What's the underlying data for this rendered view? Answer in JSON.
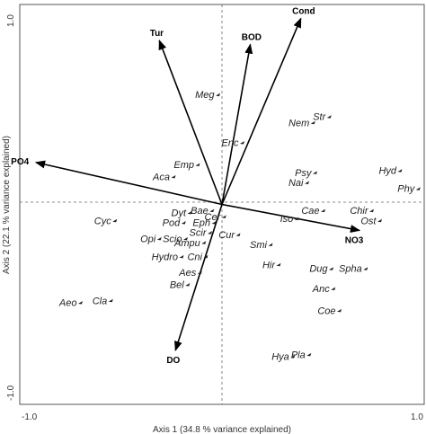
{
  "chart_data": {
    "type": "scatter",
    "subtype": "ordination-biplot",
    "xlabel": "Axis 1 (34.8 % variance explained)",
    "ylabel": "Axis 2 (22.1 % variance explained)",
    "xlim": [
      -1.0,
      1.0
    ],
    "ylim": [
      -1.0,
      1.0
    ],
    "x_tick_labels": [
      "-1.0",
      "1.0"
    ],
    "y_tick_labels": [
      "-1.0",
      "1.0"
    ],
    "reference_lines": "dashed lines at x=0 and y=0",
    "grid": false,
    "colors": {
      "arrow": "#000000",
      "species": "#222222",
      "frame": "#555555"
    },
    "env_vectors": [
      {
        "name": "Cond",
        "x": 0.39,
        "y": 0.93
      },
      {
        "name": "BOD",
        "x": 0.14,
        "y": 0.8
      },
      {
        "name": "Tur",
        "x": -0.31,
        "y": 0.82
      },
      {
        "name": "PO4",
        "x": -0.92,
        "y": 0.21
      },
      {
        "name": "NO3",
        "x": 0.68,
        "y": -0.13
      },
      {
        "name": "DO",
        "x": -0.23,
        "y": -0.73
      }
    ],
    "species": [
      {
        "name": "Meg",
        "x": -0.02,
        "y": 0.55
      },
      {
        "name": "Str",
        "x": 0.53,
        "y": 0.44
      },
      {
        "name": "Nem",
        "x": 0.45,
        "y": 0.41
      },
      {
        "name": "Enc",
        "x": 0.1,
        "y": 0.31
      },
      {
        "name": "Emp",
        "x": -0.12,
        "y": 0.2
      },
      {
        "name": "Aca",
        "x": -0.24,
        "y": 0.14
      },
      {
        "name": "Psy",
        "x": 0.46,
        "y": 0.16
      },
      {
        "name": "Nai",
        "x": 0.42,
        "y": 0.11
      },
      {
        "name": "Hyd",
        "x": 0.88,
        "y": 0.17
      },
      {
        "name": "Phy",
        "x": 0.97,
        "y": 0.08
      },
      {
        "name": "Cae",
        "x": 0.5,
        "y": -0.03
      },
      {
        "name": "Chir",
        "x": 0.74,
        "y": -0.03
      },
      {
        "name": "Ost",
        "x": 0.78,
        "y": -0.08
      },
      {
        "name": "Iso",
        "x": 0.37,
        "y": -0.07
      },
      {
        "name": "Dyt",
        "x": -0.16,
        "y": -0.04
      },
      {
        "name": "Bae",
        "x": -0.05,
        "y": -0.03
      },
      {
        "name": "Cer",
        "x": 0.01,
        "y": -0.06
      },
      {
        "name": "Pod",
        "x": -0.19,
        "y": -0.09
      },
      {
        "name": "Eph",
        "x": -0.04,
        "y": -0.09
      },
      {
        "name": "Scir",
        "x": -0.06,
        "y": -0.14
      },
      {
        "name": "Cyc",
        "x": -0.53,
        "y": -0.08
      },
      {
        "name": "Scio",
        "x": -0.18,
        "y": -0.17
      },
      {
        "name": "Ampu",
        "x": -0.09,
        "y": -0.19
      },
      {
        "name": "Opi",
        "x": -0.31,
        "y": -0.17
      },
      {
        "name": "Cur",
        "x": 0.08,
        "y": -0.15
      },
      {
        "name": "Smi",
        "x": 0.24,
        "y": -0.2
      },
      {
        "name": "Hydro",
        "x": -0.2,
        "y": -0.26
      },
      {
        "name": "Cni",
        "x": -0.08,
        "y": -0.26
      },
      {
        "name": "Aes",
        "x": -0.11,
        "y": -0.34
      },
      {
        "name": "Hir",
        "x": 0.28,
        "y": -0.3
      },
      {
        "name": "Dug",
        "x": 0.54,
        "y": -0.32
      },
      {
        "name": "Spha",
        "x": 0.71,
        "y": -0.32
      },
      {
        "name": "Bel",
        "x": -0.17,
        "y": -0.4
      },
      {
        "name": "Aeo",
        "x": -0.7,
        "y": -0.49
      },
      {
        "name": "Cla",
        "x": -0.55,
        "y": -0.48
      },
      {
        "name": "Anc",
        "x": 0.55,
        "y": -0.42
      },
      {
        "name": "Coe",
        "x": 0.58,
        "y": -0.53
      },
      {
        "name": "Hya",
        "x": 0.35,
        "y": -0.76
      },
      {
        "name": "Pla",
        "x": 0.43,
        "y": -0.75
      }
    ]
  }
}
